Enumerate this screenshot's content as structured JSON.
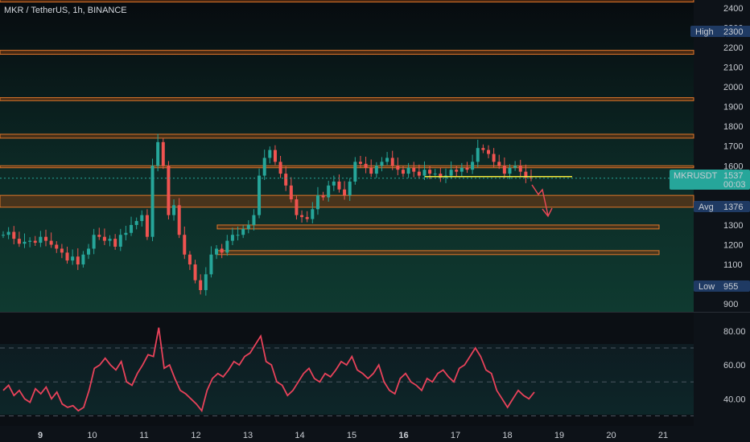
{
  "header": {
    "title": "MKR / TetherUS, 1h, BINANCE"
  },
  "colors": {
    "bull": "#26a69a",
    "bear": "#ef5350",
    "zone_stroke": "#e0762a",
    "zone_fill": "#7a3a12",
    "support_line": "#f2e93b",
    "arrow": "#e84855",
    "rsi_line": "#e8425a",
    "price_tag": "#26a69a",
    "stat_tag": "#1f3a63"
  },
  "price_axis": {
    "ticks": [
      "2400",
      "2300",
      "2200",
      "2100",
      "2000",
      "1900",
      "1800",
      "1700",
      "1600",
      "1500",
      "1400",
      "1300",
      "1200",
      "1100",
      "1000",
      "900"
    ]
  },
  "tags": {
    "high": {
      "label": "High",
      "value": "2300"
    },
    "symbol": {
      "label": "MKRUSDT",
      "value": "1537",
      "countdown": "00:03"
    },
    "avg": {
      "label": "Avg",
      "value": "1376"
    },
    "low": {
      "label": "Low",
      "value": "955"
    }
  },
  "rsi_axis": {
    "ticks": [
      "80.00",
      "60.00",
      "40.00"
    ]
  },
  "time_axis": {
    "labels": [
      "9",
      "10",
      "11",
      "12",
      "13",
      "14",
      "15",
      "16",
      "17",
      "18",
      "19",
      "20",
      "21"
    ]
  },
  "chart_data": [
    {
      "type": "line",
      "series": [
        {
          "values": [
            1250,
            1265,
            1230,
            1205,
            1215,
            1220,
            1210,
            1240,
            1220,
            1200,
            1180,
            1160,
            1120,
            1140,
            1100,
            1150,
            1180,
            1250,
            1240,
            1220,
            1230,
            1190,
            1250,
            1260,
            1300,
            1320,
            1350,
            1240,
            1600,
            1720,
            1600,
            1350,
            1400,
            1250,
            1150,
            1100,
            1020,
            970,
            1050,
            1150,
            1180,
            1160,
            1220,
            1250,
            1250,
            1280,
            1300,
            1350,
            1550,
            1640,
            1680,
            1620,
            1560,
            1500,
            1430,
            1350,
            1340,
            1330,
            1380,
            1450,
            1440,
            1500,
            1520,
            1480,
            1450,
            1520,
            1620,
            1610,
            1590,
            1560,
            1600,
            1620,
            1640,
            1600,
            1580,
            1560,
            1590,
            1570,
            1550,
            1580,
            1560,
            1560,
            1540,
            1550,
            1580,
            1570,
            1590,
            1580,
            1620,
            1690,
            1680,
            1660,
            1620,
            1600,
            1560,
            1590,
            1600,
            1570,
            1540,
            1537
          ]
        }
      ],
      "ylim": [
        860,
        2440
      ],
      "xlim": [
        8.4,
        21.4
      ],
      "zones": [
        {
          "low": 2430,
          "high": 2445
        },
        {
          "low": 2165,
          "high": 2185
        },
        {
          "low": 1930,
          "high": 1945
        },
        {
          "low": 1740,
          "high": 1760
        },
        {
          "low": 1590,
          "high": 1600
        },
        {
          "low": 1390,
          "high": 1450
        },
        {
          "low": 1280,
          "high": 1300
        },
        {
          "low": 1150,
          "high": 1170
        }
      ],
      "support_line": {
        "value": 1545
      },
      "current_price": 1537,
      "high": 2300,
      "avg": 1376,
      "low": 955
    },
    {
      "type": "line",
      "series": [
        {
          "values": [
            45,
            48,
            42,
            45,
            40,
            38,
            46,
            43,
            47,
            40,
            44,
            37,
            35,
            36,
            33,
            35,
            45,
            58,
            60,
            64,
            60,
            57,
            62,
            50,
            48,
            55,
            60,
            66,
            65,
            82,
            58,
            60,
            52,
            45,
            43,
            40,
            37,
            33,
            45,
            52,
            55,
            53,
            57,
            62,
            60,
            65,
            67,
            72,
            77,
            62,
            60,
            50,
            48,
            42,
            45,
            50,
            55,
            58,
            52,
            50,
            55,
            53,
            57,
            62,
            60,
            65,
            57,
            55,
            52,
            55,
            60,
            50,
            45,
            43,
            52,
            55,
            50,
            48,
            45,
            52,
            50,
            55,
            57,
            53,
            50,
            58,
            60,
            65,
            70,
            65,
            57,
            55,
            45,
            40,
            35,
            40,
            45,
            42,
            40,
            44
          ]
        }
      ],
      "ylim": [
        25,
        88
      ],
      "reference_lines": [
        70,
        50,
        30
      ]
    }
  ]
}
